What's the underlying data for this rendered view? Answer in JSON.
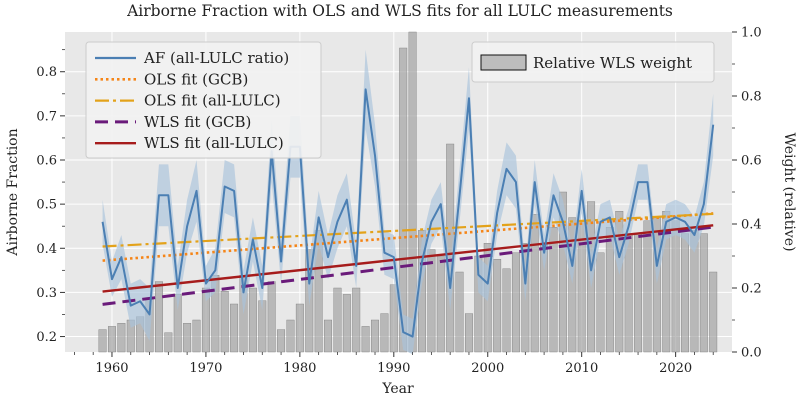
{
  "chart_data": {
    "type": "line",
    "title": "Airborne Fraction with OLS and WLS fits for all LULC measurements",
    "xlabel": "Year",
    "ylabel": "Airborne Fraction",
    "y2label": "Weight (relative)",
    "xlim": [
      1955,
      2026
    ],
    "ylim": [
      0.165,
      0.89
    ],
    "y2lim": [
      0.0,
      1.0
    ],
    "xticks": [
      1960,
      1970,
      1980,
      1990,
      2000,
      2010,
      2020
    ],
    "yticks": [
      0.2,
      0.3,
      0.4,
      0.5,
      0.6,
      0.7,
      0.8
    ],
    "y2ticks": [
      0.0,
      0.2,
      0.4,
      0.6,
      0.8,
      1.0
    ],
    "grid": true,
    "colors": {
      "background": "#e8e8e8",
      "af": "#4b7fb3",
      "band": "#a9c3dc",
      "ols_gcb": "#f58518",
      "ols_all": "#e3a21a",
      "wls_gcb": "#6a1b7a",
      "wls_all": "#a61c1c",
      "bars": "#9e9e9e"
    },
    "legend_left": [
      {
        "label": "AF (all-LULC ratio)",
        "key": "af",
        "style": "solid"
      },
      {
        "label": "OLS fit (GCB)",
        "key": "ols_gcb",
        "style": "dotted"
      },
      {
        "label": "OLS fit (all-LULC)",
        "key": "ols_all",
        "style": "dashdot"
      },
      {
        "label": "WLS fit (GCB)",
        "key": "wls_gcb",
        "style": "dashed"
      },
      {
        "label": "WLS fit (all-LULC)",
        "key": "wls_all",
        "style": "solid"
      }
    ],
    "legend_right": [
      {
        "label": "Relative WLS weight",
        "key": "bars",
        "style": "patch"
      }
    ],
    "series": [
      {
        "name": "AF (all-LULC ratio)",
        "x": [
          1959,
          1960,
          1961,
          1962,
          1963,
          1964,
          1965,
          1966,
          1967,
          1968,
          1969,
          1970,
          1971,
          1972,
          1973,
          1974,
          1975,
          1976,
          1977,
          1978,
          1979,
          1980,
          1981,
          1982,
          1983,
          1984,
          1985,
          1986,
          1987,
          1988,
          1989,
          1990,
          1991,
          1992,
          1993,
          1994,
          1995,
          1996,
          1997,
          1998,
          1999,
          2000,
          2001,
          2002,
          2003,
          2004,
          2005,
          2006,
          2007,
          2008,
          2009,
          2010,
          2011,
          2012,
          2013,
          2014,
          2015,
          2016,
          2017,
          2018,
          2019,
          2020,
          2021,
          2022,
          2023,
          2024
        ],
        "y": [
          0.46,
          0.33,
          0.38,
          0.27,
          0.28,
          0.25,
          0.52,
          0.52,
          0.31,
          0.45,
          0.53,
          0.32,
          0.35,
          0.54,
          0.53,
          0.3,
          0.42,
          0.31,
          0.62,
          0.37,
          0.63,
          0.63,
          0.32,
          0.47,
          0.38,
          0.46,
          0.51,
          0.36,
          0.76,
          0.61,
          0.39,
          0.38,
          0.21,
          0.2,
          0.37,
          0.46,
          0.5,
          0.31,
          0.52,
          0.74,
          0.34,
          0.32,
          0.48,
          0.58,
          0.55,
          0.32,
          0.55,
          0.39,
          0.52,
          0.46,
          0.36,
          0.53,
          0.35,
          0.46,
          0.47,
          0.38,
          0.45,
          0.55,
          0.55,
          0.36,
          0.46,
          0.47,
          0.46,
          0.43,
          0.5,
          0.68
        ],
        "band_halfwidth": [
          0.05,
          0.04,
          0.05,
          0.05,
          0.05,
          0.06,
          0.07,
          0.07,
          0.05,
          0.06,
          0.07,
          0.04,
          0.05,
          0.06,
          0.06,
          0.05,
          0.05,
          0.05,
          0.07,
          0.05,
          0.07,
          0.07,
          0.05,
          0.06,
          0.05,
          0.06,
          0.06,
          0.05,
          0.09,
          0.07,
          0.05,
          0.05,
          0.04,
          0.04,
          0.05,
          0.05,
          0.05,
          0.05,
          0.06,
          0.07,
          0.04,
          0.04,
          0.05,
          0.06,
          0.06,
          0.04,
          0.05,
          0.04,
          0.05,
          0.05,
          0.04,
          0.05,
          0.04,
          0.04,
          0.04,
          0.04,
          0.04,
          0.04,
          0.04,
          0.04,
          0.04,
          0.04,
          0.04,
          0.04,
          0.05,
          0.07
        ]
      },
      {
        "name": "OLS fit (GCB)",
        "x": [
          1959,
          2024
        ],
        "y": [
          0.372,
          0.479
        ]
      },
      {
        "name": "OLS fit (all-LULC)",
        "x": [
          1959,
          2024
        ],
        "y": [
          0.404,
          0.478
        ]
      },
      {
        "name": "WLS fit (GCB)",
        "x": [
          1959,
          2024
        ],
        "y": [
          0.273,
          0.448
        ]
      },
      {
        "name": "WLS fit (all-LULC)",
        "x": [
          1959,
          2024
        ],
        "y": [
          0.302,
          0.452
        ]
      }
    ],
    "bars": {
      "name": "Relative WLS weight",
      "axis": "right",
      "x": [
        1959,
        1960,
        1961,
        1962,
        1963,
        1964,
        1965,
        1966,
        1967,
        1968,
        1969,
        1970,
        1971,
        1972,
        1973,
        1974,
        1975,
        1976,
        1977,
        1978,
        1979,
        1980,
        1981,
        1982,
        1983,
        1984,
        1985,
        1986,
        1987,
        1988,
        1989,
        1990,
        1991,
        1992,
        1993,
        1994,
        1995,
        1996,
        1997,
        1998,
        1999,
        2000,
        2001,
        2002,
        2003,
        2004,
        2005,
        2006,
        2007,
        2008,
        2009,
        2010,
        2011,
        2012,
        2013,
        2014,
        2015,
        2016,
        2017,
        2018,
        2019,
        2020,
        2021,
        2022,
        2023,
        2024
      ],
      "values": [
        0.07,
        0.08,
        0.09,
        0.1,
        0.11,
        0.17,
        0.22,
        0.06,
        0.18,
        0.09,
        0.1,
        0.2,
        0.24,
        0.19,
        0.15,
        0.24,
        0.2,
        0.16,
        0.22,
        0.07,
        0.1,
        0.15,
        0.32,
        0.38,
        0.1,
        0.2,
        0.18,
        0.2,
        0.08,
        0.1,
        0.12,
        0.21,
        0.95,
        1.0,
        0.38,
        0.32,
        0.3,
        0.65,
        0.25,
        0.12,
        0.3,
        0.34,
        0.29,
        0.26,
        0.31,
        0.34,
        0.43,
        0.34,
        0.39,
        0.5,
        0.42,
        0.41,
        0.47,
        0.31,
        0.39,
        0.44,
        0.37,
        0.37,
        0.41,
        0.42,
        0.44,
        0.41,
        0.37,
        0.38,
        0.37,
        0.25
      ]
    }
  }
}
